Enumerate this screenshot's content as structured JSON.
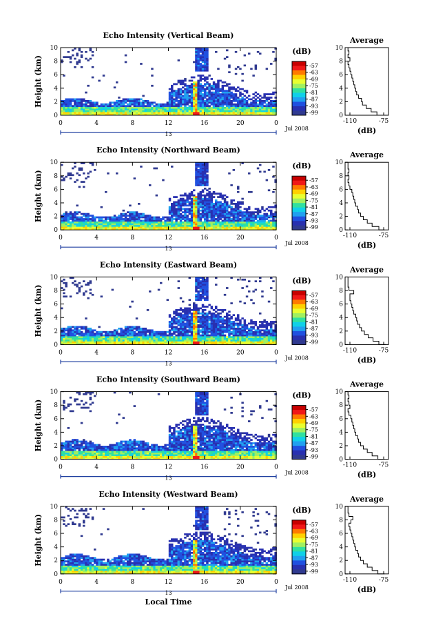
{
  "chart_data": {
    "type": "heatmap",
    "x_ticks": [
      "0",
      "4",
      "8",
      "12",
      "16",
      "20",
      "0"
    ],
    "y_ticks": [
      "0",
      "2",
      "4",
      "6",
      "8",
      "10"
    ],
    "ylabel": "Height (km)",
    "date_label": "Jul 2008",
    "day_label": "13",
    "xlabel": "Local Time",
    "colorbar": {
      "unit": "(dB)",
      "labels": [
        "-57",
        "-63",
        "-69",
        "-75",
        "-81",
        "-87",
        "-93",
        "-99"
      ],
      "colors": [
        "#c80000",
        "#f01818",
        "#ff7a00",
        "#ffd000",
        "#e8ff30",
        "#a0f060",
        "#30e0a0",
        "#10d0e8",
        "#20a0f0",
        "#2050e0",
        "#2830b0",
        "#303a90"
      ]
    },
    "average": {
      "title": "Average",
      "xlabel": "(dB)",
      "x_ticks": [
        "-110",
        "-75"
      ],
      "y_ticks": [
        "0",
        "2",
        "4",
        "6",
        "8",
        "10"
      ],
      "xlim": [
        -115,
        -70
      ],
      "ylim": [
        0,
        10
      ]
    },
    "panels": [
      {
        "title": "Echo Intensity (Vertical Beam)",
        "profile": [
          [
            -74,
            0
          ],
          [
            -82,
            0.5
          ],
          [
            -88,
            1
          ],
          [
            -93,
            1.5
          ],
          [
            -97,
            2
          ],
          [
            -98,
            2.5
          ],
          [
            -101,
            3
          ],
          [
            -103,
            3.5
          ],
          [
            -104,
            4
          ],
          [
            -105,
            4.5
          ],
          [
            -106,
            5
          ],
          [
            -107,
            5.5
          ],
          [
            -108,
            6
          ],
          [
            -109,
            6.5
          ],
          [
            -110,
            7
          ],
          [
            -111,
            7.5
          ],
          [
            -112,
            8
          ],
          [
            -110,
            8.5
          ],
          [
            -112,
            9
          ],
          [
            -111,
            9.5
          ],
          [
            -112,
            10
          ]
        ]
      },
      {
        "title": "Echo Intensity (Northward Beam)",
        "profile": [
          [
            -74,
            0
          ],
          [
            -80,
            0.5
          ],
          [
            -87,
            1
          ],
          [
            -92,
            1.5
          ],
          [
            -96,
            2
          ],
          [
            -99,
            2.5
          ],
          [
            -101,
            3
          ],
          [
            -102,
            3.5
          ],
          [
            -104,
            4
          ],
          [
            -105,
            4.5
          ],
          [
            -106,
            5
          ],
          [
            -107,
            5.5
          ],
          [
            -108,
            6
          ],
          [
            -110,
            6.5
          ],
          [
            -111,
            7
          ],
          [
            -112,
            7.5
          ],
          [
            -111,
            8
          ],
          [
            -112,
            8.5
          ],
          [
            -111,
            9
          ],
          [
            -112,
            9.5
          ],
          [
            -112,
            10
          ]
        ]
      },
      {
        "title": "Echo Intensity (Eastward Beam)",
        "profile": [
          [
            -73,
            0
          ],
          [
            -80,
            0.5
          ],
          [
            -86,
            1
          ],
          [
            -91,
            1.5
          ],
          [
            -95,
            2
          ],
          [
            -98,
            2.5
          ],
          [
            -100,
            3
          ],
          [
            -102,
            3.5
          ],
          [
            -103,
            4
          ],
          [
            -104,
            4.5
          ],
          [
            -106,
            5
          ],
          [
            -107,
            5.5
          ],
          [
            -108,
            6
          ],
          [
            -109,
            6.5
          ],
          [
            -110,
            7
          ],
          [
            -110,
            7.5
          ],
          [
            -106,
            8
          ],
          [
            -111,
            8.5
          ],
          [
            -112,
            9
          ],
          [
            -112,
            9.5
          ],
          [
            -112,
            10
          ]
        ]
      },
      {
        "title": "Echo Intensity (Southward Beam)",
        "profile": [
          [
            -74,
            0
          ],
          [
            -81,
            0.5
          ],
          [
            -87,
            1
          ],
          [
            -92,
            1.5
          ],
          [
            -96,
            2
          ],
          [
            -99,
            2.5
          ],
          [
            -101,
            3
          ],
          [
            -102,
            3.5
          ],
          [
            -104,
            4
          ],
          [
            -105,
            4.5
          ],
          [
            -106,
            5
          ],
          [
            -107,
            5.5
          ],
          [
            -108,
            6
          ],
          [
            -109,
            6.5
          ],
          [
            -111,
            7
          ],
          [
            -112,
            7.5
          ],
          [
            -110,
            8
          ],
          [
            -111,
            8.5
          ],
          [
            -112,
            9
          ],
          [
            -111,
            9.5
          ],
          [
            -112,
            10
          ]
        ]
      },
      {
        "title": "Echo Intensity (Westward Beam)",
        "profile": [
          [
            -74,
            0
          ],
          [
            -81,
            0.5
          ],
          [
            -87,
            1
          ],
          [
            -92,
            1.5
          ],
          [
            -96,
            2
          ],
          [
            -99,
            2.5
          ],
          [
            -101,
            3
          ],
          [
            -102,
            3.5
          ],
          [
            -104,
            4
          ],
          [
            -105,
            4.5
          ],
          [
            -106,
            5
          ],
          [
            -107,
            5.5
          ],
          [
            -108,
            6
          ],
          [
            -109,
            6.5
          ],
          [
            -110,
            7
          ],
          [
            -111,
            7.5
          ],
          [
            -109,
            8
          ],
          [
            -107,
            8.5
          ],
          [
            -111,
            9
          ],
          [
            -112,
            9.5
          ],
          [
            -112,
            10
          ]
        ]
      }
    ]
  }
}
